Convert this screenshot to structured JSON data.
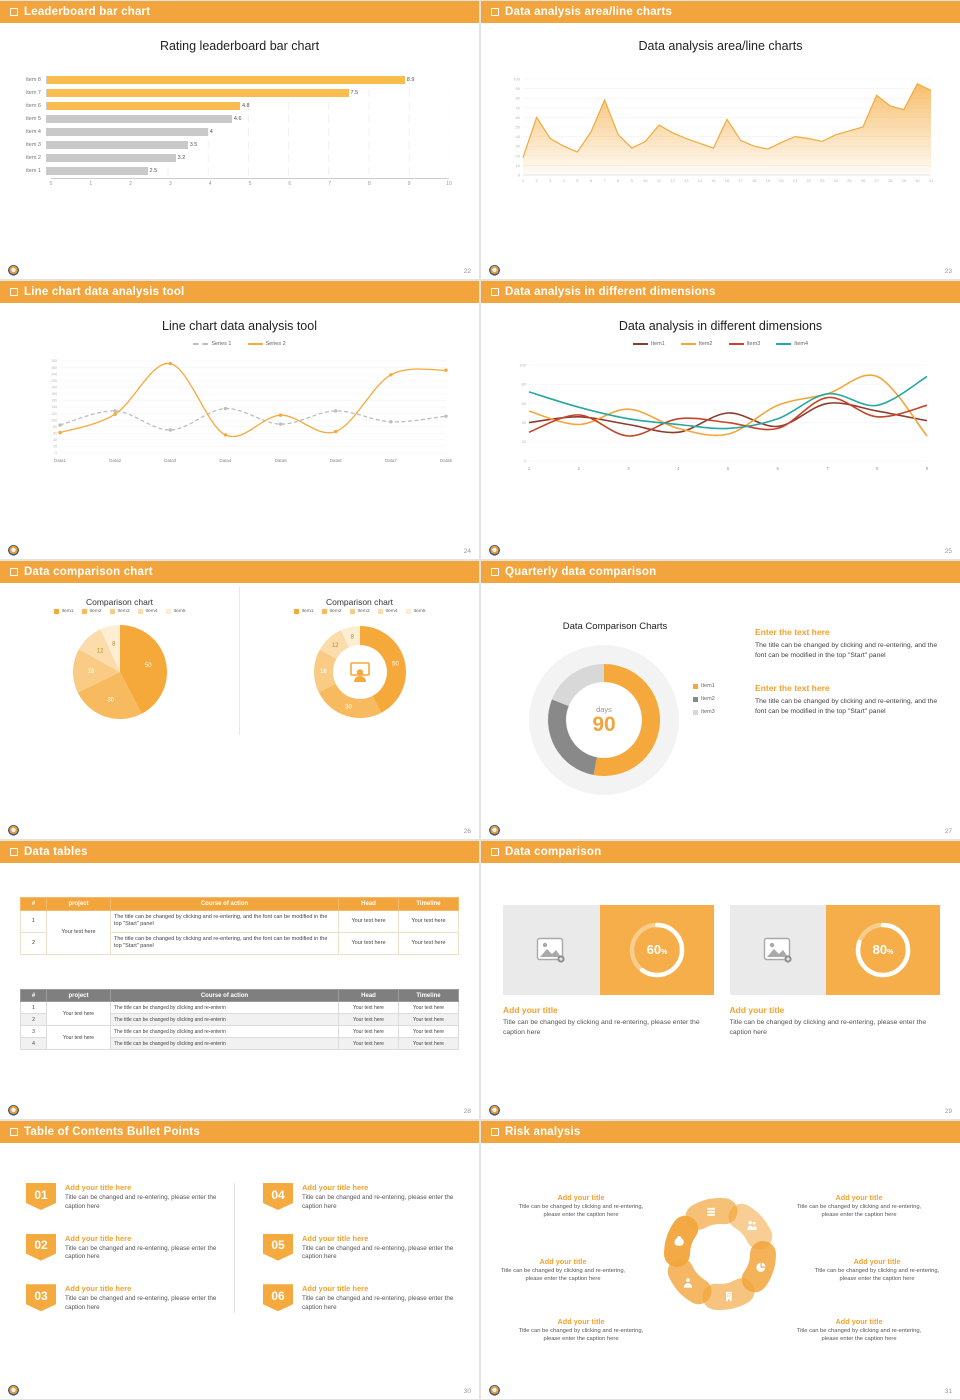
{
  "colors": {
    "accent": "#F2A53C",
    "heading_orange": "#F0A230",
    "bar_top": "#F9BC4E",
    "bar_rest": "#C9C9C9"
  },
  "slides": {
    "s1": {
      "header": "Leaderboard bar chart",
      "page": "22",
      "title": "Rating leaderboard bar chart",
      "chart_data": {
        "type": "bar",
        "orientation": "horizontal",
        "categories": [
          "item 1",
          "item 2",
          "item 3",
          "item 4",
          "item 5",
          "item 6",
          "item 7",
          "item 8"
        ],
        "values": [
          2.5,
          3.2,
          3.5,
          4,
          4.6,
          4.8,
          7.5,
          8.9
        ],
        "highlight_top": 3,
        "bar_color_top": "#F9BC4E",
        "bar_color_rest": "#C9C9C9",
        "xlim": [
          0,
          10
        ],
        "xticks": [
          0,
          1,
          2,
          3,
          4,
          5,
          6,
          7,
          8,
          9,
          10
        ]
      }
    },
    "s2": {
      "header": "Data analysis area/line charts",
      "page": "23",
      "title": "Data analysis area/line charts",
      "chart_data": {
        "type": "area",
        "x_start": 1,
        "ylim": [
          0,
          100
        ],
        "yticks_step": 10,
        "color": "#F5A93C",
        "values": [
          18,
          60,
          38,
          30,
          24,
          45,
          78,
          42,
          28,
          35,
          52,
          44,
          38,
          33,
          28,
          58,
          36,
          30,
          27,
          34,
          40,
          38,
          35,
          42,
          46,
          50,
          83,
          72,
          68,
          95,
          88
        ]
      }
    },
    "s3": {
      "header": "Line chart data analysis tool",
      "page": "24",
      "title": "Line chart data analysis tool",
      "chart_data": {
        "type": "line",
        "categories": [
          "Data1",
          "Data2",
          "Data3",
          "Data4",
          "Data5",
          "Data6",
          "Data7",
          "Data8"
        ],
        "ylim": [
          0,
          280
        ],
        "yticks_step": 20,
        "series": [
          {
            "name": "Series 1",
            "color": "#BDBDBD",
            "dashed": true,
            "values": [
              85,
              128,
              70,
              135,
              88,
              128,
              95,
              112
            ]
          },
          {
            "name": "Series 2",
            "color": "#F5A93C",
            "dashed": false,
            "values": [
              62,
              118,
              272,
              55,
              115,
              65,
              238,
              252
            ]
          }
        ]
      }
    },
    "s4": {
      "header": "Data analysis in different dimensions",
      "page": "25",
      "title": "Data analysis in different dimensions",
      "chart_data": {
        "type": "line",
        "x_labels": [
          "1",
          "2",
          "3",
          "4",
          "5",
          "6",
          "7",
          "8",
          "9"
        ],
        "ylim": [
          0,
          100
        ],
        "yticks_step": 20,
        "series": [
          {
            "name": "Item1",
            "color": "#8F3B2C",
            "dashed": false,
            "values": [
              40,
              46,
              38,
              30,
              50,
              36,
              60,
              52,
              42
            ]
          },
          {
            "name": "Item2",
            "color": "#F2A63B",
            "dashed": false,
            "values": [
              52,
              38,
              54,
              34,
              28,
              58,
              70,
              88,
              26
            ]
          },
          {
            "name": "Item3",
            "color": "#C3452B",
            "dashed": false,
            "values": [
              30,
              48,
              26,
              44,
              40,
              34,
              66,
              46,
              58
            ]
          },
          {
            "name": "Item4",
            "color": "#27A79F",
            "dashed": false,
            "values": [
              72,
              56,
              44,
              38,
              34,
              44,
              70,
              58,
              88
            ]
          }
        ]
      }
    },
    "s5": {
      "header": "Data comparison chart",
      "page": "26",
      "charts": [
        {
          "title": "Comparison chart",
          "type": "pie",
          "legend": [
            "Item1",
            "Item2",
            "Item3",
            "Item4",
            "Item5"
          ],
          "values": [
            50,
            30,
            18,
            12,
            8
          ],
          "colors": [
            "#F6A93B",
            "#F8BA5E",
            "#FACB84",
            "#FBDCAB",
            "#FDEDD3"
          ]
        },
        {
          "title": "Comparison chart",
          "type": "donut",
          "legend": [
            "Item1",
            "Item2",
            "Item3",
            "Item4",
            "Item5"
          ],
          "values": [
            50,
            30,
            18,
            12,
            8
          ],
          "colors": [
            "#F6A93B",
            "#F8BA5E",
            "#FACB84",
            "#FBDCAB",
            "#FDEDD3"
          ]
        }
      ]
    },
    "s6": {
      "header": "Quarterly data comparison",
      "page": "27",
      "title": "Data Comparison Charts",
      "center_label": "days",
      "center_value": "90",
      "chart_data": {
        "type": "donut",
        "legend": [
          "Item1",
          "Item2",
          "Item3"
        ],
        "values": [
          53,
          28,
          19
        ],
        "colors": [
          "#F5A93C",
          "#898989",
          "#D8D8D8"
        ]
      },
      "blocks": [
        {
          "title": "Enter the text here",
          "body": "The title can be changed by clicking and re-entering, and the font can be modified in the top \"Start\" panel"
        },
        {
          "title": "Enter the text here",
          "body": "The title can be changed by clicking and re-entering, and the font can be modified in the top \"Start\" panel"
        }
      ]
    },
    "s7": {
      "header": "Data tables",
      "page": "28",
      "table": {
        "columns": [
          "#",
          "project",
          "Course of action",
          "Head",
          "Timeline"
        ],
        "cell": "Your text here",
        "project": "Your text here",
        "t1_course": "The title can be changed by clicking and re-entering, and the font can be modified in the top \"Start\" panel",
        "t2_course": "The title can be changed by clicking and re-enterin",
        "t1_nums": [
          "1",
          "2"
        ],
        "t2_nums": [
          "1",
          "2",
          "3",
          "4"
        ]
      }
    },
    "s8": {
      "header": "Data comparison",
      "page": "29",
      "unit": "%",
      "cards": [
        {
          "percent": 60,
          "title": "Add your title",
          "caption": "Title can be changed by clicking and re-entering, please enter the caption here"
        },
        {
          "percent": 80,
          "title": "Add your title",
          "caption": "Title can be changed by clicking and re-entering, please enter the caption here"
        }
      ]
    },
    "s9": {
      "header": "Table of Contents Bullet Points",
      "page": "30",
      "items": [
        {
          "num": "01",
          "title": "Add your title here",
          "body": "Title can be changed and re-entering, please enter the caption here"
        },
        {
          "num": "02",
          "title": "Add your title here",
          "body": "Title can be changed and re-entering, please enter the caption here"
        },
        {
          "num": "03",
          "title": "Add your title here",
          "body": "Title can be changed and re-entering, please enter the caption here"
        },
        {
          "num": "04",
          "title": "Add your title here",
          "body": "Title can be changed and re-entering, please enter the caption here"
        },
        {
          "num": "05",
          "title": "Add your title here",
          "body": "Title can be changed and re-entering, please enter the caption here"
        },
        {
          "num": "06",
          "title": "Add your title here",
          "body": "Title can be changed and re-entering, please enter the caption here"
        }
      ]
    },
    "s10": {
      "header": "Risk analysis",
      "page": "31",
      "petal_color": "#F2A53C",
      "petal_opacities": [
        0.95,
        0.7,
        0.55,
        0.85,
        0.65,
        0.8
      ],
      "petal_icons": [
        "money-bag",
        "coins",
        "people",
        "pie-chart",
        "building",
        "person"
      ],
      "blocks": [
        {
          "title": "Add your title",
          "body": "Title can be changed by clicking and re-entering, please enter the caption here"
        },
        {
          "title": "Add your title",
          "body": "Title can be changed by clicking and re-entering, please enter the caption here"
        },
        {
          "title": "Add your title",
          "body": "Title can be changed by clicking and re-entering, please enter the caption here"
        },
        {
          "title": "Add your title",
          "body": "Title can be changed by clicking and re-entering, please enter the caption here"
        },
        {
          "title": "Add your title",
          "body": "Title can be changed by clicking and re-entering, please enter the caption here"
        },
        {
          "title": "Add your title",
          "body": "Title can be changed by clicking and re-entering, please enter the caption here"
        }
      ]
    }
  }
}
